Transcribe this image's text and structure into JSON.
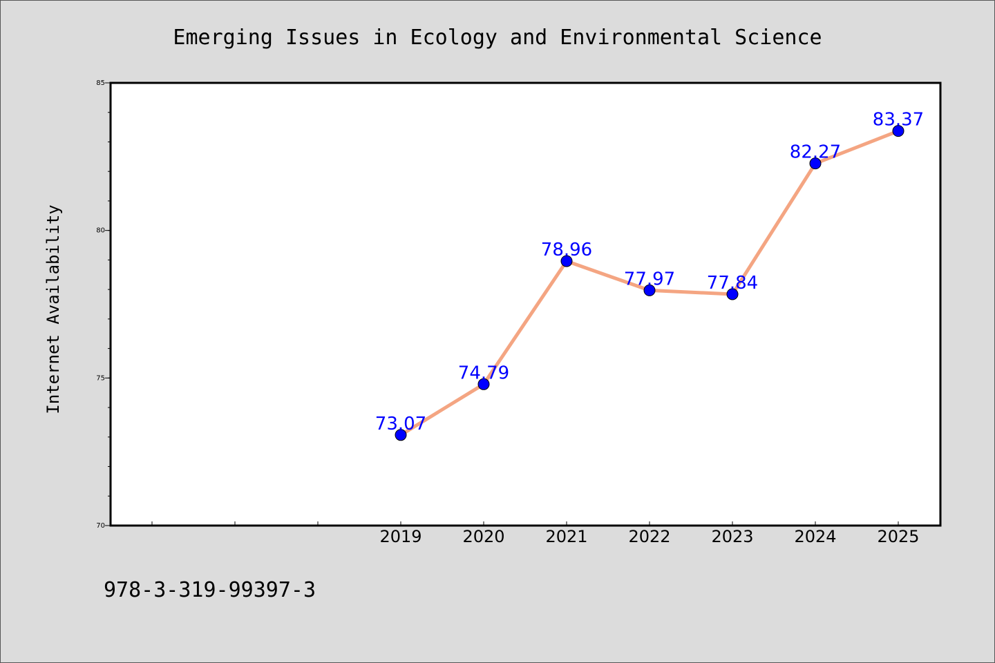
{
  "chart_data": {
    "type": "line",
    "title": "Emerging Issues in Ecology and Environmental Science",
    "xlabel": "",
    "ylabel": "Internet Availability",
    "x": [
      "2019",
      "2020",
      "2021",
      "2022",
      "2023",
      "2024",
      "2025"
    ],
    "series": [
      {
        "values": [
          73.07,
          74.79,
          78.96,
          77.97,
          77.84,
          82.27,
          83.37
        ],
        "data_labels": [
          "73.07",
          "74.79",
          "78.96",
          "77.97",
          "77.84",
          "82.27",
          "83.37"
        ]
      }
    ],
    "ylim": [
      70,
      85
    ],
    "yticks": [
      "70",
      "75",
      "80",
      "85"
    ],
    "grid": false,
    "colors": {
      "line": "#f4a582",
      "marker": "#0000ff",
      "label": "#0000ff",
      "plot_bg": "#ffffff",
      "page_bg": "#dcdcdc"
    }
  },
  "footer": {
    "isbn": "978-3-319-99397-3"
  }
}
